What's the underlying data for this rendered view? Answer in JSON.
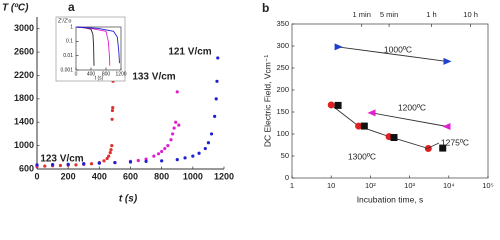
{
  "chart_data": [
    {
      "type": "scatter",
      "title": "a",
      "xlabel": "t (s)",
      "ylabel": "T (ºC)",
      "xlim": [
        0,
        1200
      ],
      "ylim": [
        600,
        3200
      ],
      "xticks": [
        0,
        200,
        400,
        600,
        800,
        1000,
        1200
      ],
      "yticks": [
        600,
        1000,
        1400,
        1800,
        2200,
        2600,
        3000
      ],
      "series": [
        {
          "name": "123 V/cm",
          "color": "#e0302e",
          "marker": "circle",
          "x": [
            0,
            50,
            100,
            150,
            200,
            250,
            300,
            350,
            400,
            430,
            450,
            460,
            470,
            475,
            480,
            482,
            484,
            486,
            488
          ],
          "values": [
            640,
            650,
            655,
            660,
            665,
            670,
            680,
            690,
            710,
            740,
            780,
            820,
            880,
            930,
            1000,
            1450,
            1600,
            1650,
            2100
          ]
        },
        {
          "name": "133 V/cm",
          "color": "#e020d0",
          "marker": "circle",
          "x": [
            0,
            100,
            200,
            300,
            400,
            500,
            600,
            650,
            700,
            750,
            780,
            800,
            820,
            840,
            860,
            870,
            880,
            890,
            900,
            910
          ],
          "values": [
            660,
            670,
            680,
            690,
            700,
            710,
            730,
            745,
            770,
            820,
            860,
            900,
            950,
            1000,
            1100,
            1200,
            1300,
            1400,
            1920,
            1350
          ]
        },
        {
          "name": "121 V/cm",
          "color": "#2020d0",
          "marker": "circle",
          "x": [
            0,
            100,
            200,
            300,
            400,
            500,
            600,
            700,
            800,
            900,
            950,
            1000,
            1040,
            1080,
            1100,
            1120,
            1140,
            1150,
            1155,
            1160
          ],
          "values": [
            670,
            675,
            680,
            690,
            700,
            710,
            720,
            730,
            740,
            760,
            790,
            820,
            870,
            950,
            1050,
            1200,
            1500,
            1800,
            2100,
            2500
          ]
        }
      ]
    },
    {
      "type": "line",
      "ylabel": "Z'/Z'o",
      "xlabel": "t (s)",
      "ylog": true,
      "xlim": [
        0,
        1200
      ],
      "ylim": [
        0.001,
        1
      ],
      "xticks": [
        0,
        400,
        800,
        1200
      ],
      "yticks": [
        1,
        0.1,
        0.01,
        0.001
      ],
      "series": [
        {
          "color": "#222222",
          "x": [
            0,
            200,
            400,
            450,
            470,
            480
          ],
          "values": [
            1,
            0.9,
            0.7,
            0.3,
            0.05,
            0.002
          ]
        },
        {
          "color": "#e020d0",
          "x": [
            0,
            400,
            800,
            860,
            890,
            900
          ],
          "values": [
            1,
            0.8,
            0.5,
            0.1,
            0.01,
            0.002
          ]
        },
        {
          "color": "#2020d0",
          "x": [
            0,
            600,
            1000,
            1100,
            1140,
            1160
          ],
          "values": [
            1,
            0.8,
            0.5,
            0.2,
            0.02,
            0.003
          ]
        }
      ]
    },
    {
      "type": "scatter",
      "title": "b",
      "xlabel": "Incubation time, s",
      "ylabel": "DC Electric Field, Vcm⁻¹",
      "xlog": true,
      "xlim": [
        1,
        100000
      ],
      "ylim": [
        0,
        350
      ],
      "xticks": [
        1,
        10,
        {
          "value": 100,
          "label": "10²"
        },
        {
          "value": 1000,
          "label": "10³"
        },
        {
          "value": 10000,
          "label": "10⁴"
        },
        {
          "value": 100000,
          "label": "10⁵"
        }
      ],
      "x2ticks": [
        {
          "value": 60,
          "label": "1 min"
        },
        {
          "value": 300,
          "label": "5 min"
        },
        {
          "value": 3600,
          "label": "1 h"
        },
        {
          "value": 36000,
          "label": "10 h"
        }
      ],
      "yticks": [
        0,
        50,
        100,
        150,
        200,
        250,
        300,
        350
      ],
      "series": [
        {
          "name": "1000ºC",
          "color": "#1e3fd0",
          "marker": "triangle-right",
          "line": true,
          "x": [
            15,
            9000
          ],
          "values": [
            298,
            265
          ]
        },
        {
          "name": "1200ºC",
          "color": "#e020d0",
          "marker": "triangle-left",
          "line": true,
          "x": [
            110,
            9000
          ],
          "values": [
            148,
            117
          ]
        },
        {
          "name": "1300ºC",
          "color": "#e02020",
          "marker": "circle",
          "line": true,
          "x": [
            10,
            50,
            300,
            3000
          ],
          "values": [
            166,
            118,
            94,
            67
          ]
        },
        {
          "name": "1275ºC",
          "color": "#111111",
          "marker": "square",
          "x": [
            15,
            70,
            400,
            7000
          ],
          "values": [
            165,
            118,
            92,
            68
          ]
        }
      ]
    }
  ]
}
